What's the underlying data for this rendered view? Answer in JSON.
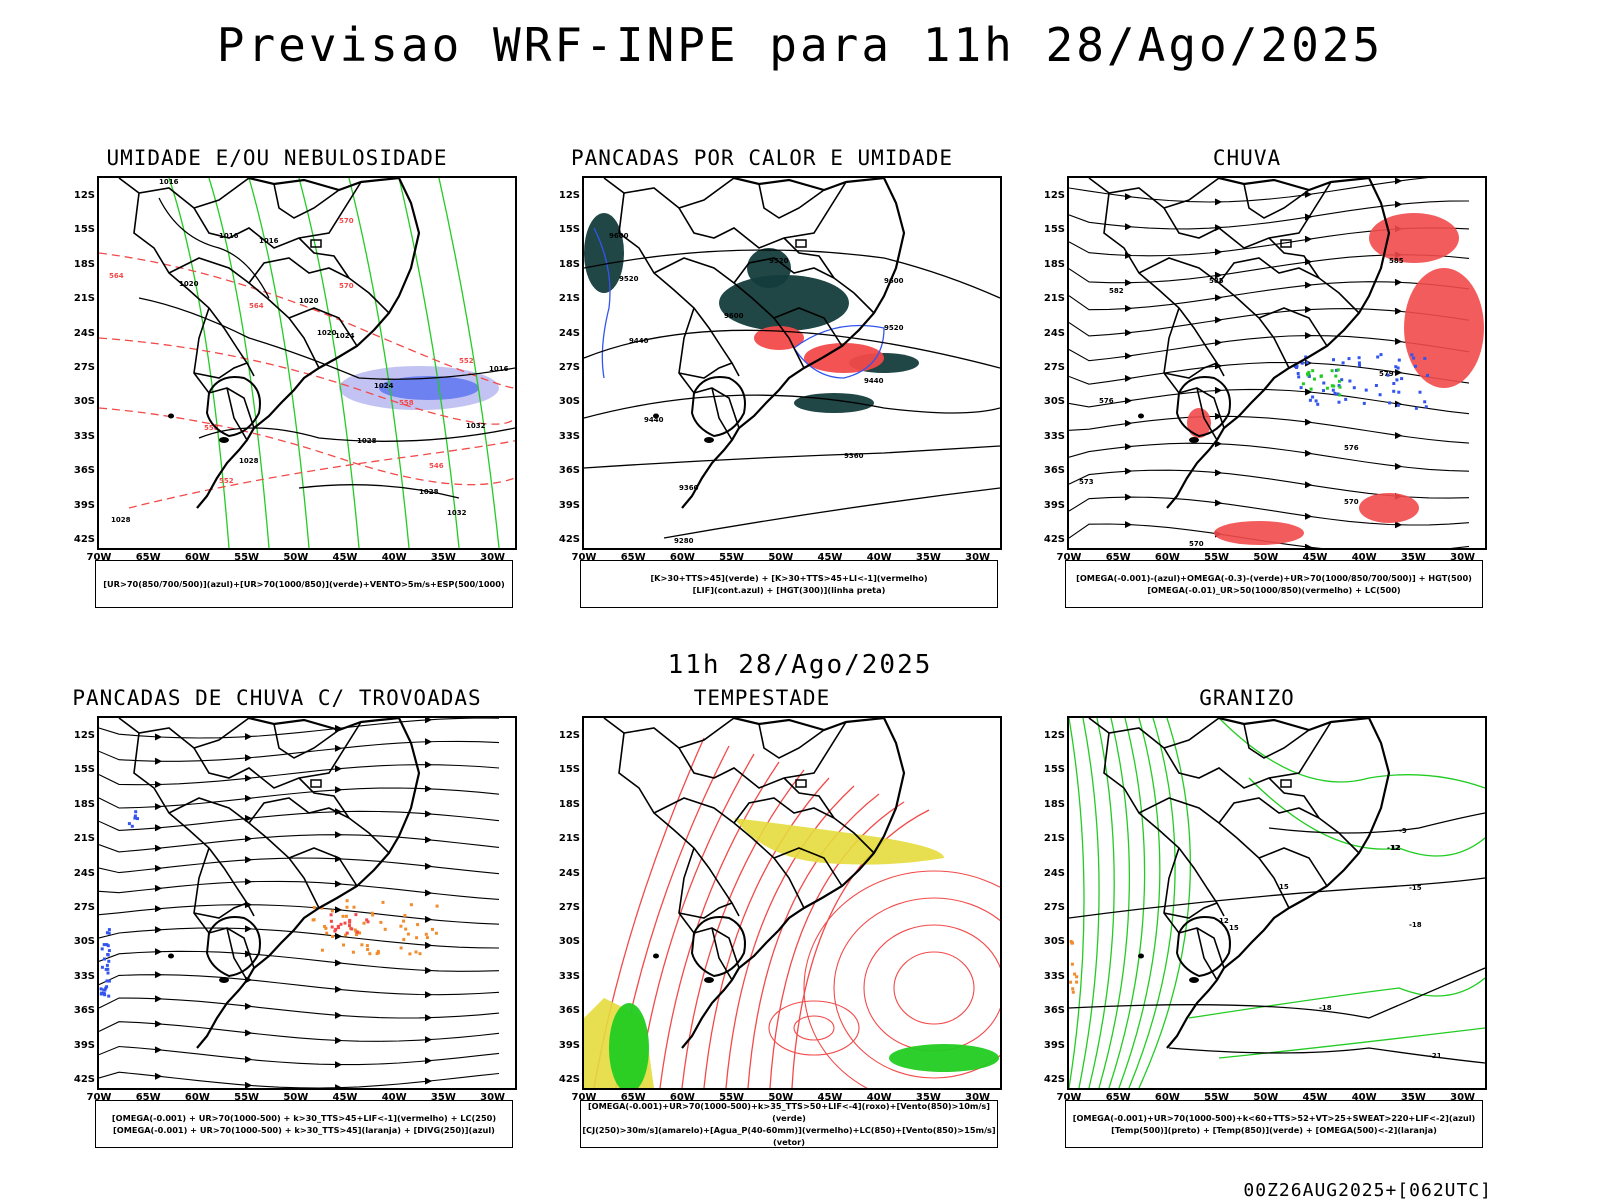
{
  "title": "Previsao WRF-INPE  para 11h 28/Ago/2025",
  "subtitle": "11h 28/Ago/2025",
  "run": "00Z26AUG2025+[062UTC]",
  "axes": {
    "lat": [
      "12S",
      "15S",
      "18S",
      "21S",
      "24S",
      "27S",
      "30S",
      "33S",
      "36S",
      "39S",
      "42S"
    ],
    "lon": [
      "70W",
      "65W",
      "60W",
      "55W",
      "50W",
      "45W",
      "40W",
      "35W",
      "30W"
    ]
  },
  "colors": {
    "red": "#f24a4a",
    "green": "#22cc22",
    "blue": "#3355ee",
    "lavender": "#b4b4f0",
    "dark": "#143c3c",
    "yellow": "#e4dc3c",
    "orange": "#f08c2c"
  },
  "chart_data": [
    {
      "type": "heatmap",
      "title": "UMIDADE E/OU NEBULOSIDADE",
      "caption": [
        "[UR>70(850/700/500)](azul)+[UR>70(1000/850)](verde)+VENTO>5m/s+ESP(500/1000)"
      ],
      "contour_labels": [
        "1016",
        "1016",
        "1016",
        "1020",
        "1020",
        "1020",
        "1024",
        "1024",
        "1028",
        "1028",
        "1032",
        "1028",
        "1032",
        "1028",
        "1016"
      ],
      "thickness_labels": [
        "570",
        "570",
        "564",
        "558",
        "552",
        "546",
        "558",
        "552",
        "564"
      ]
    },
    {
      "type": "heatmap",
      "title": "PANCADAS POR CALOR E UMIDADE",
      "caption": [
        "[K>30+TTS>45](verde) + [K>30+TTS>45+LI<-1](vermelho)",
        "[LIF](cont.azul) + [HGT(300)](linha preta)"
      ],
      "contour_labels": [
        "9600",
        "9520",
        "9600",
        "9600",
        "9520",
        "9520",
        "9440",
        "9440",
        "9440",
        "9360",
        "9360",
        "9280"
      ]
    },
    {
      "type": "heatmap",
      "title": "CHUVA",
      "caption": [
        "[OMEGA(-0.001)-(azul)+OMEGA(-0.3)-(verde)+UR>70(1000/850/700/500)] + HGT(500)",
        "[OMEGA(-0.01)_UR>50(1000/850)(vermelho) + LC(500)"
      ],
      "contour_labels": [
        "585",
        "585",
        "582",
        "579",
        "576",
        "576",
        "573",
        "570",
        "570"
      ]
    },
    {
      "type": "heatmap",
      "title": "PANCADAS DE CHUVA C/ TROVOADAS",
      "caption": [
        "[OMEGA(-0.001) + UR>70(1000-500) + k>30_TTS>45+LIF<-1](vermelho) + LC(250)",
        "[OMEGA(-0.001) + UR>70(1000-500) + k>30_TTS>45](laranja) + [DIVG(250)](azul)"
      ]
    },
    {
      "type": "heatmap",
      "title": "TEMPESTADE",
      "caption": [
        "[OMEGA(-0.001)+UR>70(1000-500)+k>35_TTS>50+LIF<-4](roxo)+[Vento(850)>10m/s](verde)",
        "[CJ(250)>30m/s](amarelo)+[Agua_P(40-60mm)](vermelho)+LC(850)+[Vento(850)>15m/s](vetor)"
      ]
    },
    {
      "type": "heatmap",
      "title": "GRANIZO",
      "caption": [
        "[OMEGA(-0.001)+UR>70(1000-500)+k<60+TTS>52+VT>25+SWEAT>220+LIF<-2](azul)",
        "[Temp(500)](preto) + [Temp(850)](verde) + [OMEGA(500)<-2](laranja)"
      ],
      "contour_labels": [
        "-9",
        "-12",
        "-15",
        "-18",
        "-18",
        "-21",
        "12",
        "15",
        "15",
        "12"
      ]
    }
  ]
}
